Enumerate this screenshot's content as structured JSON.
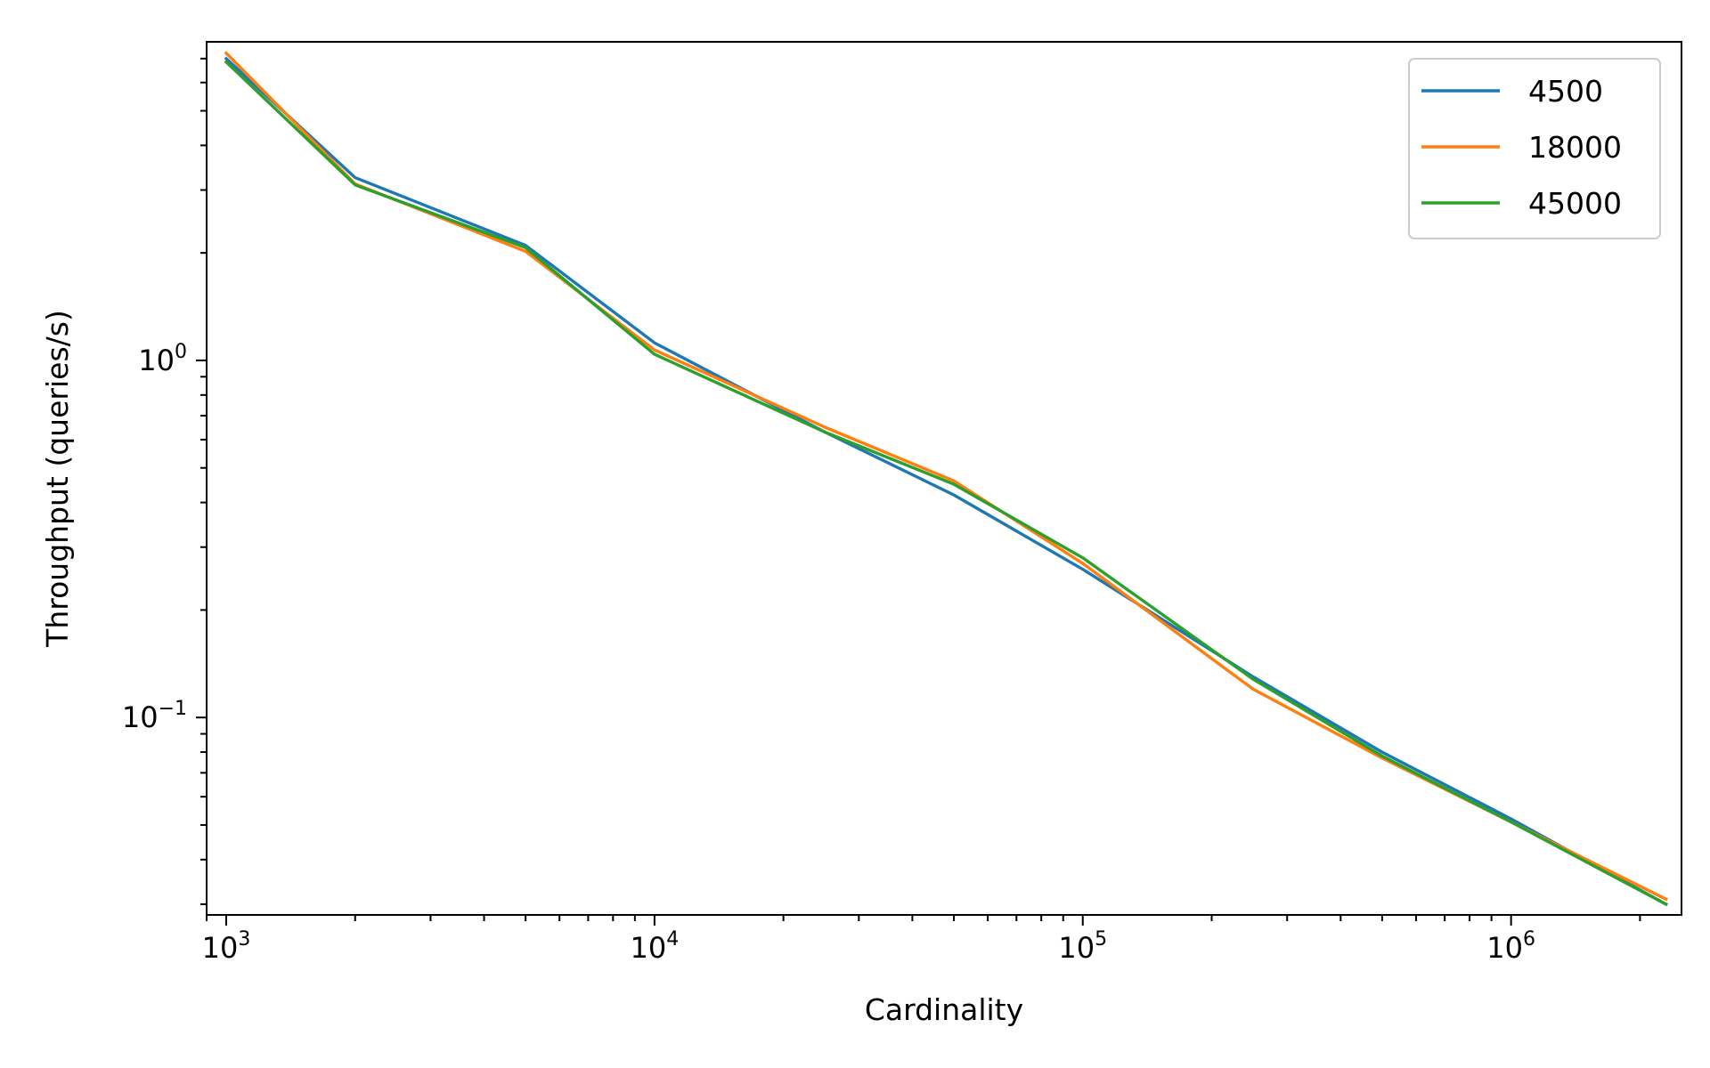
{
  "chart_data": {
    "type": "line",
    "title": "",
    "xlabel": "Cardinality",
    "ylabel": "Throughput (queries/s)",
    "xscale": "log",
    "yscale": "log",
    "xlim": [
      900,
      2500000
    ],
    "ylim": [
      0.028,
      7.8
    ],
    "grid": false,
    "legend_position": "top-right",
    "x_ticks": [
      {
        "value": 1000,
        "base": "10",
        "exp": "3"
      },
      {
        "value": 10000,
        "base": "10",
        "exp": "4"
      },
      {
        "value": 100000,
        "base": "10",
        "exp": "5"
      },
      {
        "value": 1000000,
        "base": "10",
        "exp": "6"
      }
    ],
    "y_ticks": [
      {
        "value": 1,
        "base": "10",
        "exp": "0"
      },
      {
        "value": 0.1,
        "base": "10",
        "exp": "−1"
      }
    ],
    "x": [
      1000,
      2000,
      5000,
      10000,
      25000,
      50000,
      100000,
      250000,
      500000,
      1000000,
      2300000
    ],
    "series": [
      {
        "name": "4500",
        "color": "#1f77b4",
        "values": [
          7.0,
          3.25,
          2.1,
          1.12,
          0.63,
          0.42,
          0.26,
          0.13,
          0.08,
          0.052,
          0.03
        ]
      },
      {
        "name": "18000",
        "color": "#ff7f0e",
        "values": [
          7.25,
          3.12,
          2.02,
          1.07,
          0.65,
          0.46,
          0.27,
          0.12,
          0.077,
          0.051,
          0.031
        ]
      },
      {
        "name": "45000",
        "color": "#2ca02c",
        "values": [
          6.85,
          3.1,
          2.07,
          1.04,
          0.63,
          0.45,
          0.28,
          0.128,
          0.078,
          0.051,
          0.03
        ]
      }
    ]
  }
}
